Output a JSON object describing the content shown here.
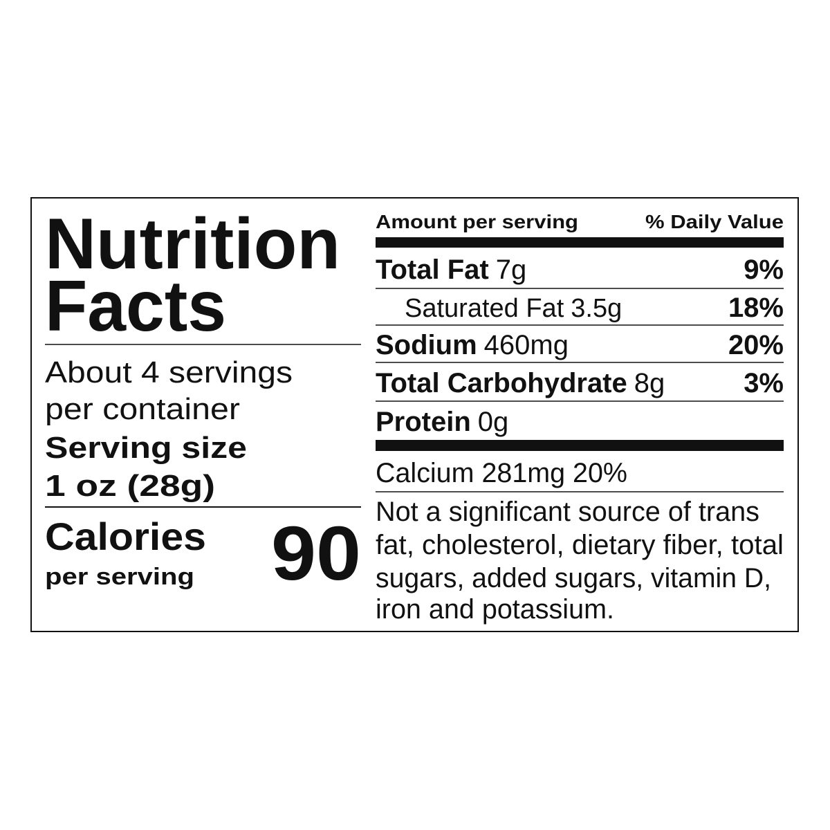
{
  "title_lines": [
    "Nutrition",
    "Facts"
  ],
  "servings_lines": [
    "About 4 servings",
    "per container"
  ],
  "serving_size": {
    "label": "Serving size",
    "value": "1 oz (28g)"
  },
  "calories": {
    "label": "Calories",
    "sublabel": "per serving",
    "value": 90
  },
  "header": {
    "amount": "Amount per serving",
    "daily_value": "% Daily Value"
  },
  "nutrients": [
    {
      "name": "Total Fat",
      "amount": "7g",
      "dv": "9%"
    },
    {
      "name": "Saturated Fat",
      "amount": "3.5g",
      "dv": "18%",
      "indent": true
    },
    {
      "name": "Sodium",
      "amount": "460mg",
      "dv": "20%"
    },
    {
      "name": "Total Carbohydrate",
      "amount": "8g",
      "dv": "3%"
    },
    {
      "name": "Protein",
      "amount": "0g"
    }
  ],
  "vitamins": [
    "Calcium 281mg 20%"
  ],
  "note_lines": [
    "Not a significant source of trans",
    "fat, cholesterol, dietary fiber, total",
    "sugars, added sugars, vitamin D,",
    "iron and potassium."
  ]
}
